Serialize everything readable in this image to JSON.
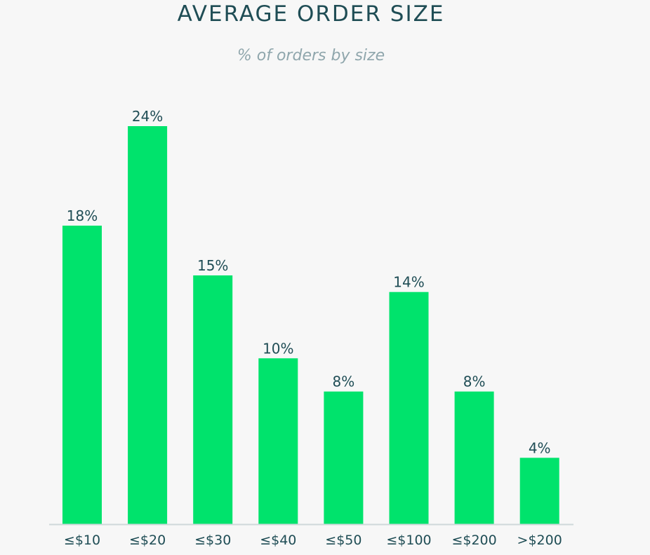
{
  "chart_data": {
    "type": "bar",
    "title": "AVERAGE ORDER SIZE",
    "subtitle": "% of orders by size",
    "xlabel": "",
    "ylabel": "",
    "categories": [
      "≤$10",
      "≤$20",
      "≤$30",
      "≤$40",
      "≤$50",
      "≤$100",
      "≤$200",
      ">$200"
    ],
    "values": [
      18,
      24,
      15,
      10,
      8,
      14,
      8,
      4
    ],
    "data_labels": [
      "18%",
      "24%",
      "15%",
      "10%",
      "8%",
      "14%",
      "8%",
      "4%"
    ],
    "ylim": [
      0,
      24
    ],
    "grid": false,
    "legend": "none",
    "colors": {
      "bar": "#00e36c",
      "axis": "#cfd8da",
      "title": "#1f4d55",
      "subtitle": "#8fa6ac",
      "label": "#1f4d55",
      "background": "#f7f7f7"
    }
  }
}
